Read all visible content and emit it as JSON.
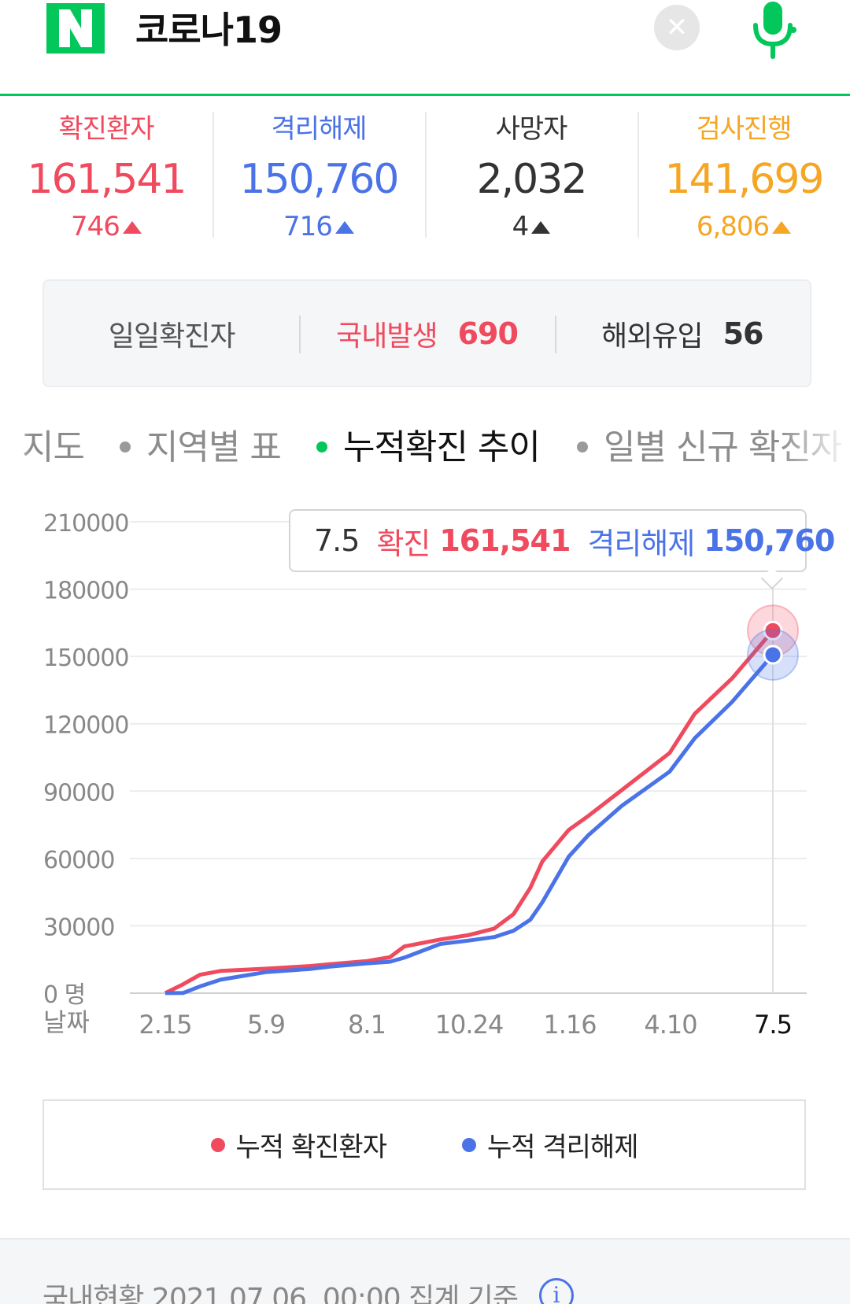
{
  "search": {
    "query": "코로나19"
  },
  "colors": {
    "confirmed": "#f04a5e",
    "released": "#4b73e8",
    "deaths": "#333333",
    "testing": "#f5a623",
    "brand": "#03c75a"
  },
  "stats": [
    {
      "label": "확진환자",
      "value": "161,541",
      "delta": "746",
      "color": "#f04a5e"
    },
    {
      "label": "격리해제",
      "value": "150,760",
      "delta": "716",
      "color": "#4b73e8"
    },
    {
      "label": "사망자",
      "value": "2,032",
      "delta": "4",
      "color": "#333333"
    },
    {
      "label": "검사진행",
      "value": "141,699",
      "delta": "6,806",
      "color": "#f5a623"
    }
  ],
  "daily": {
    "label": "일일확진자",
    "domestic_label": "국내발생",
    "domestic_value": "690",
    "overseas_label": "해외유입",
    "overseas_value": "56"
  },
  "tabs": [
    "지도",
    "지역별 표",
    "누적확진 추이",
    "일별 신규 확진자"
  ],
  "active_tab": "누적확진 추이",
  "tooltip": {
    "date": "7.5",
    "confirmed_label": "확진",
    "confirmed_value": "161,541",
    "released_label": "격리해제",
    "released_value": "150,760"
  },
  "legend": {
    "confirmed": "누적 확진환자",
    "released": "누적 격리해제"
  },
  "footer": {
    "text": "국내현황 2021.07.06. 00:00 집계 기준",
    "info_icon": "info-icon"
  },
  "chart_data": {
    "type": "line",
    "y_ticks": [
      "210000",
      "180000",
      "150000",
      "120000",
      "90000",
      "60000",
      "30000",
      "0 명"
    ],
    "ylim": [
      0,
      210000
    ],
    "x_label": "날짜",
    "x_ticks": [
      "2.15",
      "5.9",
      "8.1",
      "10.24",
      "1.16",
      "4.10",
      "7.5"
    ],
    "x": [
      "2.15",
      "3.1",
      "3.15",
      "4.1",
      "5.9",
      "6.15",
      "7.1",
      "8.1",
      "8.20",
      "9.1",
      "10.1",
      "10.24",
      "11.15",
      "12.1",
      "12.15",
      "12.25",
      "1.16",
      "2.1",
      "3.1",
      "4.10",
      "5.1",
      "6.1",
      "7.5"
    ],
    "series": [
      {
        "name": "누적 확진환자",
        "color": "#f04a5e",
        "values": [
          30,
          4000,
          8200,
          9900,
          10900,
          12100,
          12900,
          14300,
          16000,
          20800,
          23900,
          25800,
          28800,
          35200,
          46900,
          58700,
          72700,
          78800,
          90400,
          107000,
          124500,
          140200,
          161541
        ]
      },
      {
        "name": "누적 격리해제",
        "color": "#4b73e8",
        "values": [
          20,
          100,
          3000,
          6000,
          9400,
          10800,
          11800,
          13300,
          14000,
          15800,
          21900,
          23400,
          25000,
          27800,
          32700,
          40500,
          60800,
          70200,
          83400,
          98700,
          113600,
          129700,
          150760
        ]
      }
    ]
  }
}
